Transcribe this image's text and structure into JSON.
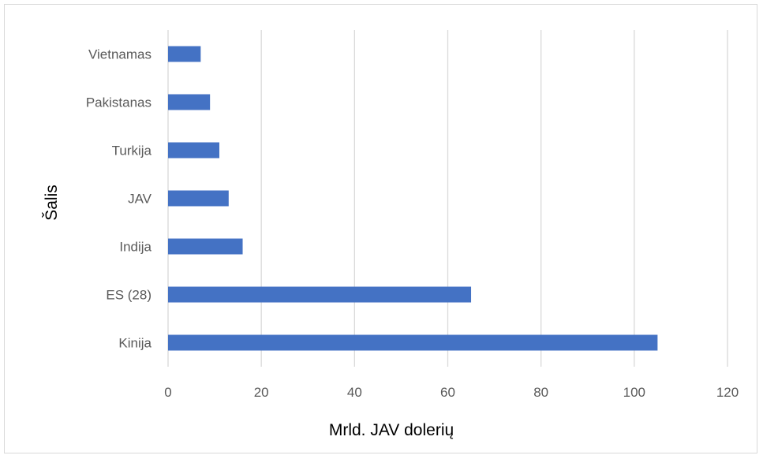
{
  "chart_data": {
    "type": "bar",
    "orientation": "horizontal",
    "title": "",
    "xlabel": "Mrld. JAV dolerių",
    "ylabel": "Šalis",
    "categories": [
      "Kinija",
      "ES (28)",
      "Indija",
      "JAV",
      "Turkija",
      "Pakistanas",
      "Vietnamas"
    ],
    "values": [
      105,
      65,
      16,
      13,
      11,
      9,
      7
    ],
    "xlim": [
      0,
      120
    ],
    "xticks": [
      "0",
      "20",
      "40",
      "60",
      "80",
      "100",
      "120"
    ],
    "grid": true,
    "legend": "none",
    "bar_color": "#4472c4",
    "grid_color": "#d9d9d9"
  }
}
